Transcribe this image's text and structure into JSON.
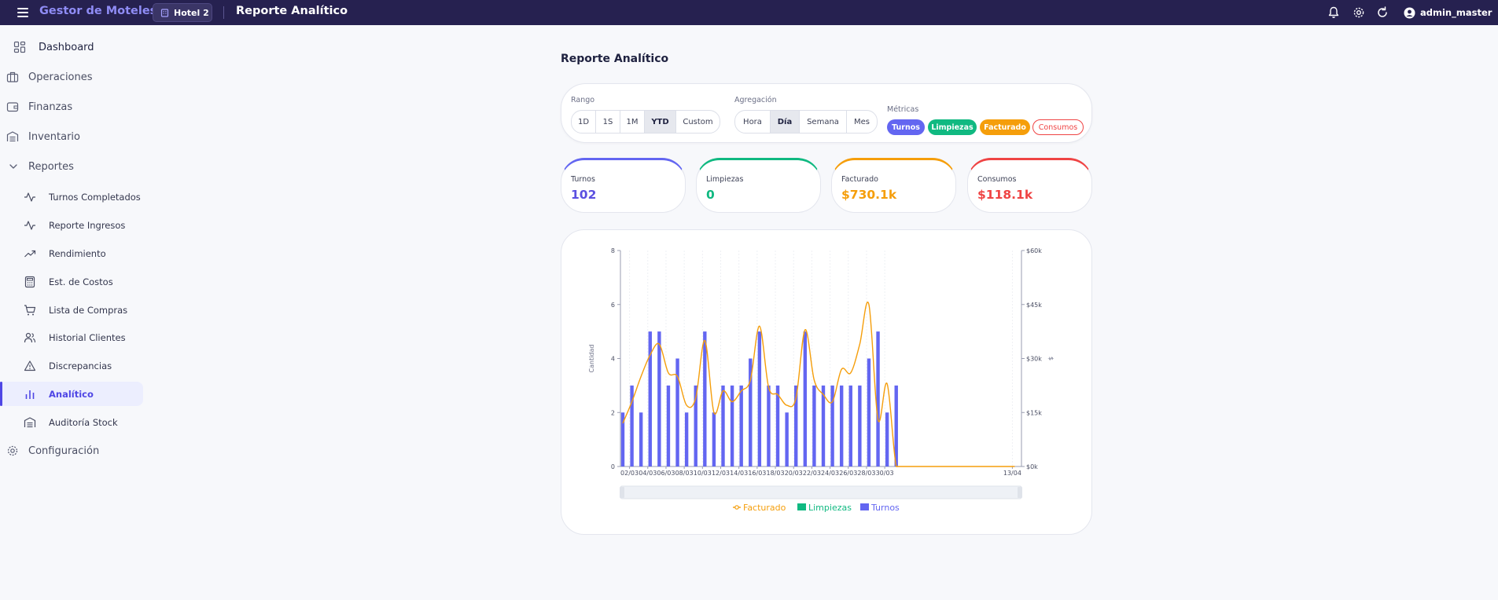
{
  "topbar": {
    "app_title": "Gestor de Moteles",
    "hotel": "Hotel 2",
    "page_title": "Reporte Analítico",
    "user": "admin_master"
  },
  "sidebar": {
    "items": [
      {
        "label": "Dashboard"
      },
      {
        "label": "Operaciones"
      },
      {
        "label": "Finanzas"
      },
      {
        "label": "Inventario"
      },
      {
        "label": "Reportes"
      },
      {
        "label": "Configuración"
      }
    ],
    "reportes_sub": [
      {
        "label": "Turnos Completados"
      },
      {
        "label": "Reporte Ingresos"
      },
      {
        "label": "Rendimiento"
      },
      {
        "label": "Est. de Costos"
      },
      {
        "label": "Lista de Compras"
      },
      {
        "label": "Historial Clientes"
      },
      {
        "label": "Discrepancias"
      },
      {
        "label": "Analítico"
      },
      {
        "label": "Auditoría Stock"
      }
    ],
    "active_item": "Analítico"
  },
  "main": {
    "title": "Reporte Analítico",
    "filters": {
      "rango_label": "Rango",
      "rango_options": [
        "1D",
        "1S",
        "1M",
        "YTD",
        "Custom"
      ],
      "rango_selected": "YTD",
      "agregacion_label": "Agregación",
      "agregacion_options": [
        "Hora",
        "Día",
        "Semana",
        "Mes"
      ],
      "agregacion_selected": "Día",
      "metricas_label": "Métricas",
      "metricas": [
        {
          "label": "Turnos",
          "color": "#6366f1",
          "active": true
        },
        {
          "label": "Limpiezas",
          "color": "#10b981",
          "active": true
        },
        {
          "label": "Facturado",
          "color": "#f59e0b",
          "active": true
        },
        {
          "label": "Consumos",
          "color": "#ef4444",
          "active": false
        }
      ]
    },
    "kpis": [
      {
        "label": "Turnos",
        "value": "102",
        "color": "#5b50e0"
      },
      {
        "label": "Limpiezas",
        "value": "0",
        "color": "#10b981"
      },
      {
        "label": "Facturado",
        "value": "$730.1k",
        "color": "#f59e0b"
      },
      {
        "label": "Consumos",
        "value": "$118.1k",
        "color": "#ef4444"
      }
    ]
  },
  "chart_data": {
    "type": "bar",
    "x_range": [
      "01/03",
      "14/04"
    ],
    "x_tick_labels": [
      "02/03",
      "04/03",
      "06/03",
      "08/03",
      "10/03",
      "12/03",
      "14/03",
      "16/03",
      "18/03",
      "20/03",
      "22/03",
      "24/03",
      "26/03",
      "28/03",
      "30/03",
      "13/04"
    ],
    "ylabel": "Cantidad",
    "y2label": "$",
    "ylim": [
      0,
      8
    ],
    "y_ticks": [
      0,
      2,
      4,
      6,
      8
    ],
    "y2lim": [
      0,
      60000
    ],
    "y2_tick_labels": [
      "$0k",
      "$15k",
      "$30k",
      "$45k",
      "$60k"
    ],
    "grid": true,
    "legend_position": "bottom",
    "series": [
      {
        "name": "Facturado",
        "type": "line",
        "axis": "right",
        "color": "#f59e0b",
        "x": [
          "01/03",
          "02/03",
          "03/03",
          "04/03",
          "05/03",
          "06/03",
          "07/03",
          "08/03",
          "09/03",
          "10/03",
          "11/03",
          "12/03",
          "13/03",
          "14/03",
          "15/03",
          "16/03",
          "17/03",
          "18/03",
          "19/03",
          "20/03",
          "21/03",
          "22/03",
          "23/03",
          "24/03",
          "25/03",
          "26/03",
          "27/03",
          "28/03",
          "29/03",
          "30/03",
          "31/03",
          "01/04",
          "02/04",
          "03/04",
          "04/04",
          "05/04",
          "06/04",
          "07/04",
          "08/04",
          "09/04",
          "10/04",
          "11/04",
          "12/04",
          "13/04"
        ],
        "values": [
          12000,
          18000,
          25000,
          31000,
          34000,
          26000,
          25000,
          17000,
          19000,
          35000,
          15000,
          21000,
          18000,
          21000,
          24000,
          39000,
          22000,
          20000,
          17000,
          19000,
          38000,
          24000,
          20000,
          18000,
          27000,
          26000,
          34000,
          45000,
          13000,
          23000,
          0,
          0,
          0,
          0,
          0,
          0,
          0,
          0,
          0,
          0,
          0,
          0,
          0,
          0
        ]
      },
      {
        "name": "Limpiezas",
        "type": "bar",
        "axis": "left",
        "color": "#10b981",
        "values": []
      },
      {
        "name": "Turnos",
        "type": "bar",
        "axis": "left",
        "color": "#6366f1",
        "x": [
          "01/03",
          "02/03",
          "03/03",
          "04/03",
          "05/03",
          "06/03",
          "07/03",
          "08/03",
          "09/03",
          "10/03",
          "11/03",
          "12/03",
          "13/03",
          "14/03",
          "15/03",
          "16/03",
          "17/03",
          "18/03",
          "19/03",
          "20/03",
          "21/03",
          "22/03",
          "23/03",
          "24/03",
          "25/03",
          "26/03",
          "27/03",
          "28/03",
          "29/03",
          "30/03",
          "31/03"
        ],
        "values": [
          2,
          3,
          2,
          5,
          5,
          3,
          4,
          2,
          3,
          5,
          2,
          3,
          3,
          3,
          4,
          5,
          3,
          3,
          2,
          3,
          5,
          3,
          3,
          3,
          3,
          3,
          3,
          4,
          5,
          2,
          3
        ]
      }
    ]
  }
}
